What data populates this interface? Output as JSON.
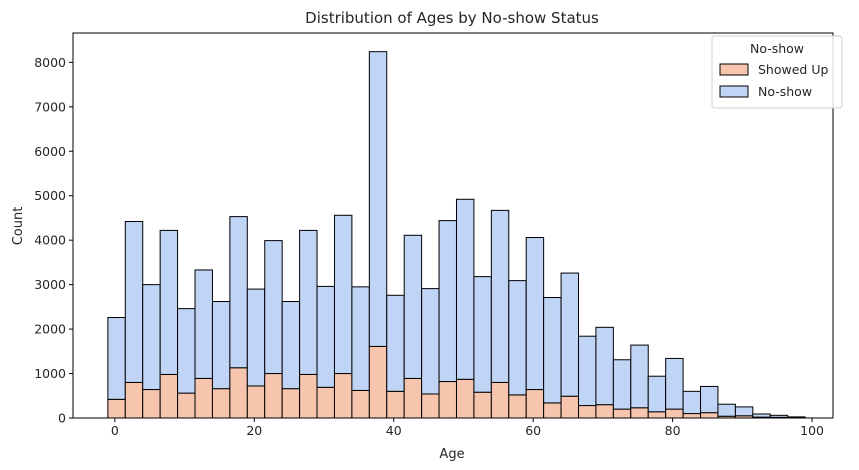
{
  "chart_data": {
    "type": "bar",
    "stacked": true,
    "title": "Distribution of Ages by No-show Status",
    "xlabel": "Age",
    "ylabel": "Count",
    "xlim": [
      -6,
      103
    ],
    "ylim": [
      0,
      8660
    ],
    "xticks": [
      0,
      20,
      40,
      60,
      80,
      100
    ],
    "yticks": [
      0,
      1000,
      2000,
      3000,
      4000,
      5000,
      6000,
      7000,
      8000
    ],
    "bin_start": -1,
    "bin_width": 2.5,
    "series": [
      {
        "name": "Showed Up",
        "color": "#f7c4ae",
        "values": [
          420,
          800,
          640,
          980,
          560,
          890,
          660,
          1130,
          720,
          1000,
          660,
          980,
          690,
          1000,
          620,
          1610,
          600,
          890,
          540,
          820,
          870,
          580,
          800,
          520,
          640,
          340,
          490,
          280,
          300,
          200,
          230,
          140,
          200,
          100,
          120,
          40,
          50,
          20,
          15,
          5
        ]
      },
      {
        "name": "No-show",
        "color": "#c0d4f5",
        "values": [
          1840,
          3620,
          2360,
          3240,
          1900,
          2440,
          1960,
          3400,
          2180,
          2990,
          1960,
          3240,
          2270,
          3560,
          2330,
          6630,
          2160,
          3220,
          2370,
          3620,
          4050,
          2600,
          3870,
          2570,
          3420,
          2370,
          2770,
          1560,
          1740,
          1110,
          1410,
          800,
          1140,
          500,
          590,
          270,
          200,
          70,
          45,
          20
        ]
      }
    ],
    "legend": {
      "title": "No-show",
      "placement": "top-right"
    }
  }
}
